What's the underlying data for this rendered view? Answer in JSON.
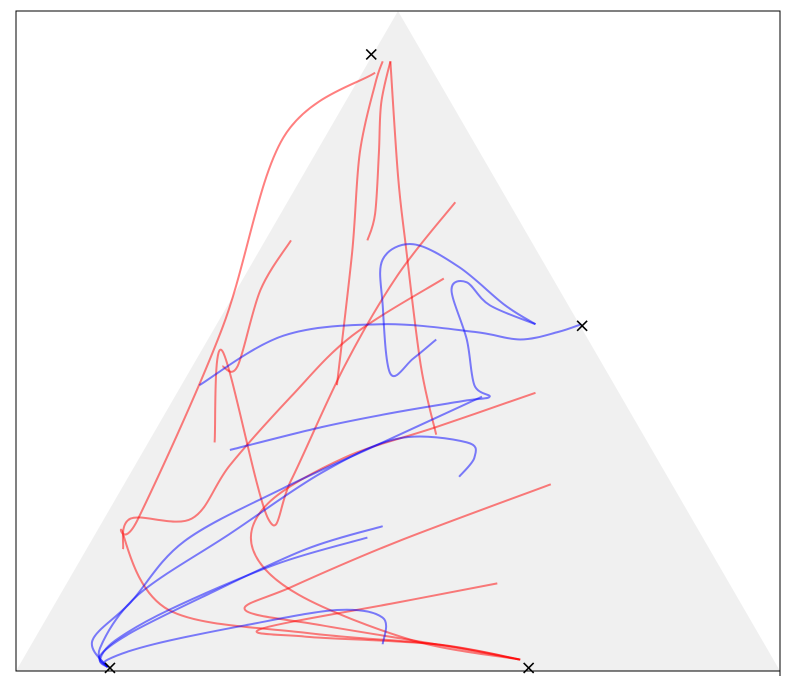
{
  "chart_data": {
    "type": "line",
    "title": "",
    "xlabel": "",
    "ylabel": "",
    "xlim": [
      0,
      1
    ],
    "ylim": [
      0,
      0.866
    ],
    "grid": false,
    "legend": "none",
    "simplex_fill_color": "#f0f0f0",
    "series": [
      {
        "color": "#ff0000",
        "trajectories": [
          [
            [
              0.46,
              0.565
            ],
            [
              0.47,
              0.6
            ],
            [
              0.475,
              0.68
            ],
            [
              0.478,
              0.745
            ],
            [
              0.49,
              0.8
            ]
          ],
          [
            [
              0.55,
              0.31
            ],
            [
              0.53,
              0.4
            ],
            [
              0.51,
              0.56
            ],
            [
              0.5,
              0.65
            ],
            [
              0.49,
              0.8
            ]
          ],
          [
            [
              0.575,
              0.615
            ],
            [
              0.5,
              0.52
            ],
            [
              0.43,
              0.4
            ],
            [
              0.36,
              0.25
            ],
            [
              0.33,
              0.2
            ],
            [
              0.27,
              0.42
            ],
            [
              0.26,
              0.3
            ]
          ],
          [
            [
              0.56,
              0.515
            ],
            [
              0.44,
              0.44
            ],
            [
              0.36,
              0.36
            ],
            [
              0.28,
              0.27
            ],
            [
              0.23,
              0.2
            ],
            [
              0.15,
              0.2
            ],
            [
              0.14,
              0.16
            ]
          ],
          [
            [
              0.36,
              0.565
            ],
            [
              0.32,
              0.5
            ],
            [
              0.29,
              0.4
            ],
            [
              0.27,
              0.4
            ]
          ],
          [
            [
              0.47,
              0.785
            ],
            [
              0.35,
              0.7
            ],
            [
              0.27,
              0.45
            ],
            [
              0.16,
              0.2
            ],
            [
              0.14,
              0.18
            ],
            [
              0.2,
              0.08
            ],
            [
              0.38,
              0.05
            ],
            [
              0.55,
              0.035
            ],
            [
              0.66,
              0.015
            ]
          ],
          [
            [
              0.68,
              0.365
            ],
            [
              0.55,
              0.32
            ],
            [
              0.43,
              0.28
            ],
            [
              0.33,
              0.22
            ],
            [
              0.31,
              0.16
            ],
            [
              0.37,
              0.1
            ],
            [
              0.52,
              0.04
            ],
            [
              0.66,
              0.015
            ]
          ],
          [
            [
              0.7,
              0.245
            ],
            [
              0.5,
              0.17
            ],
            [
              0.36,
              0.11
            ],
            [
              0.3,
              0.08
            ],
            [
              0.4,
              0.06
            ],
            [
              0.55,
              0.035
            ],
            [
              0.66,
              0.015
            ]
          ],
          [
            [
              0.63,
              0.115
            ],
            [
              0.5,
              0.09
            ],
            [
              0.32,
              0.055
            ],
            [
              0.38,
              0.045
            ],
            [
              0.55,
              0.035
            ],
            [
              0.66,
              0.015
            ]
          ],
          [
            [
              0.42,
              0.375
            ],
            [
              0.44,
              0.55
            ],
            [
              0.45,
              0.68
            ],
            [
              0.47,
              0.77
            ],
            [
              0.48,
              0.8
            ]
          ]
        ]
      },
      {
        "color": "#0000ff",
        "trajectories": [
          [
            [
              0.24,
              0.375
            ],
            [
              0.35,
              0.44
            ],
            [
              0.48,
              0.455
            ],
            [
              0.6,
              0.445
            ],
            [
              0.66,
              0.435
            ],
            [
              0.71,
              0.445
            ],
            [
              0.74,
              0.455
            ]
          ],
          [
            [
              0.55,
              0.435
            ],
            [
              0.52,
              0.41
            ],
            [
              0.49,
              0.39
            ],
            [
              0.48,
              0.48
            ],
            [
              0.48,
              0.54
            ],
            [
              0.52,
              0.56
            ],
            [
              0.58,
              0.53
            ],
            [
              0.64,
              0.48
            ],
            [
              0.68,
              0.455
            ]
          ],
          [
            [
              0.28,
              0.29
            ],
            [
              0.4,
              0.32
            ],
            [
              0.5,
              0.34
            ],
            [
              0.59,
              0.355
            ],
            [
              0.62,
              0.36
            ],
            [
              0.6,
              0.375
            ],
            [
              0.59,
              0.435
            ],
            [
              0.57,
              0.5
            ],
            [
              0.59,
              0.51
            ],
            [
              0.62,
              0.48
            ],
            [
              0.68,
              0.455
            ]
          ],
          [
            [
              0.58,
              0.255
            ],
            [
              0.6,
              0.28
            ],
            [
              0.59,
              0.3
            ],
            [
              0.5,
              0.305
            ],
            [
              0.4,
              0.26
            ],
            [
              0.28,
              0.18
            ],
            [
              0.16,
              0.1
            ],
            [
              0.11,
              0.03
            ],
            [
              0.12,
              0.005
            ]
          ],
          [
            [
              0.61,
              0.36
            ],
            [
              0.48,
              0.3
            ],
            [
              0.35,
              0.24
            ],
            [
              0.22,
              0.17
            ],
            [
              0.15,
              0.09
            ],
            [
              0.1,
              0.04
            ],
            [
              0.12,
              0.005
            ]
          ],
          [
            [
              0.48,
              0.19
            ],
            [
              0.38,
              0.16
            ],
            [
              0.25,
              0.1
            ],
            [
              0.15,
              0.05
            ],
            [
              0.11,
              0.02
            ],
            [
              0.12,
              0.005
            ]
          ],
          [
            [
              0.46,
              0.175
            ],
            [
              0.34,
              0.14
            ],
            [
              0.2,
              0.08
            ],
            [
              0.13,
              0.04
            ],
            [
              0.11,
              0.015
            ],
            [
              0.12,
              0.005
            ]
          ],
          [
            [
              0.48,
              0.035
            ],
            [
              0.48,
              0.07
            ],
            [
              0.42,
              0.08
            ],
            [
              0.3,
              0.06
            ],
            [
              0.18,
              0.035
            ],
            [
              0.12,
              0.015
            ],
            [
              0.12,
              0.005
            ]
          ]
        ]
      }
    ],
    "markers": [
      {
        "symbol": "x",
        "color": "#000000",
        "x": 0.465,
        "y": 0.809
      },
      {
        "symbol": "x",
        "color": "#000000",
        "x": 0.741,
        "y": 0.453
      },
      {
        "symbol": "x",
        "color": "#000000",
        "x": 0.123,
        "y": 0.004
      },
      {
        "symbol": "x",
        "color": "#000000",
        "x": 0.671,
        "y": 0.004
      }
    ]
  }
}
